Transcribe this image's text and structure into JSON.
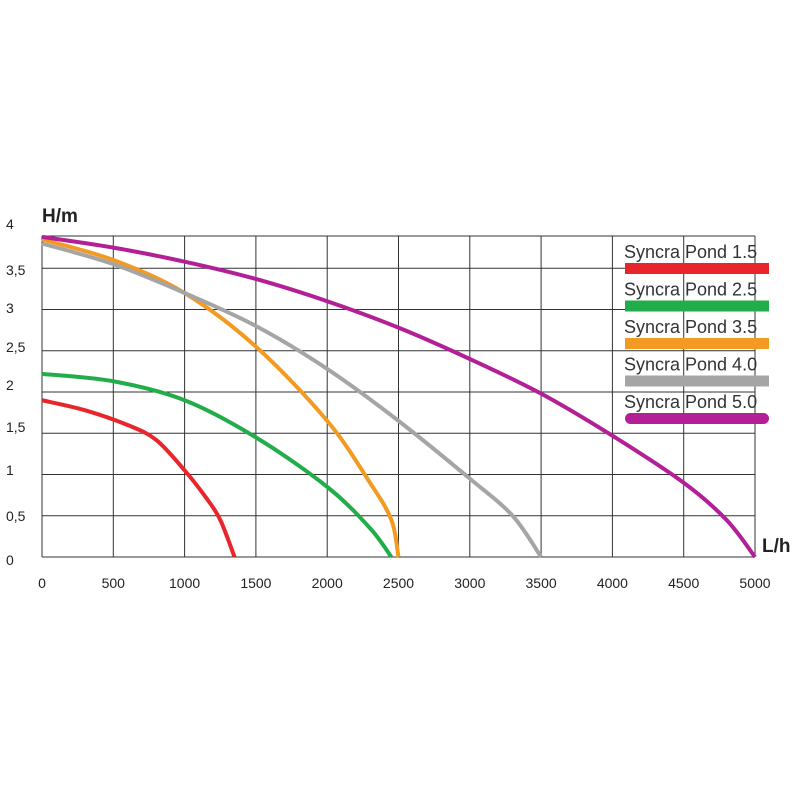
{
  "chart_data": {
    "type": "line",
    "ylabel": "H/m",
    "xlabel": "L/h",
    "xlim": [
      0,
      5000
    ],
    "ylim": [
      0,
      4
    ],
    "grid": true,
    "legend_position": "top-right",
    "x_ticks": [
      "0",
      "500",
      "1000",
      "1500",
      "2000",
      "2500",
      "3000",
      "3500",
      "4000",
      "4500",
      "5000"
    ],
    "y_ticks": [
      "0",
      "0,5",
      "1",
      "1,5",
      "2",
      "2,5",
      "3",
      "3,5",
      "4"
    ],
    "series": [
      {
        "name": "Syncra Pond 1.5",
        "color": "#e8252b",
        "x": [
          0,
          300,
          600,
          800,
          1000,
          1150,
          1250,
          1350
        ],
        "y": [
          1.9,
          1.78,
          1.6,
          1.42,
          1.05,
          0.72,
          0.45,
          0.0
        ]
      },
      {
        "name": "Syncra Pond 2.5",
        "color": "#22ad4a",
        "x": [
          0,
          500,
          1000,
          1500,
          2000,
          2300,
          2450
        ],
        "y": [
          2.22,
          2.13,
          1.9,
          1.45,
          0.85,
          0.35,
          0.0
        ]
      },
      {
        "name": "Syncra Pond 3.5",
        "color": "#f29a22",
        "x": [
          0,
          500,
          1000,
          1500,
          2000,
          2300,
          2450,
          2500
        ],
        "y": [
          3.85,
          3.6,
          3.2,
          2.55,
          1.65,
          0.9,
          0.45,
          0.0
        ]
      },
      {
        "name": "Syncra Pond 4.0",
        "color": "#a5a5a5",
        "x": [
          0,
          500,
          1000,
          1500,
          2000,
          2500,
          3000,
          3300,
          3500
        ],
        "y": [
          3.8,
          3.55,
          3.2,
          2.8,
          2.28,
          1.65,
          0.95,
          0.5,
          0.0
        ]
      },
      {
        "name": "Syncra Pond 5.0",
        "color": "#b21f96",
        "x": [
          0,
          500,
          1000,
          1500,
          2000,
          2500,
          3000,
          3500,
          4000,
          4500,
          4800,
          5000
        ],
        "y": [
          3.88,
          3.75,
          3.58,
          3.37,
          3.1,
          2.78,
          2.4,
          1.98,
          1.47,
          0.9,
          0.45,
          0.0
        ]
      }
    ]
  }
}
